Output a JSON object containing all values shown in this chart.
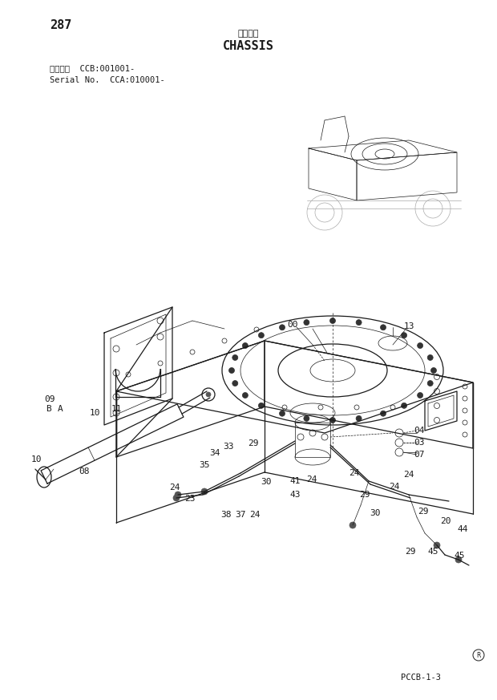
{
  "page_number": "287",
  "title_japanese": "シャーシ",
  "title_english": "CHASSIS",
  "serial_line1": "適用号機  CCB:001001-",
  "serial_line2": "Serial No.  CCA:010001-",
  "footer_code": "PCCB-1-3",
  "bg_color": "#ffffff",
  "line_color": "#1a1a1a",
  "lw_main": 0.9,
  "lw_thin": 0.5,
  "lw_thick": 1.2
}
